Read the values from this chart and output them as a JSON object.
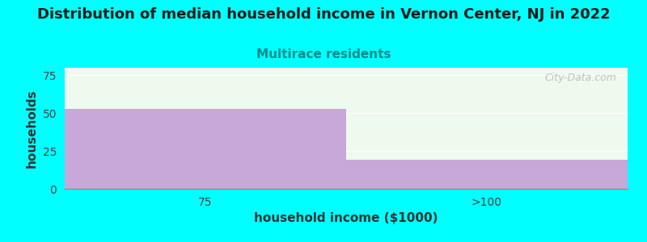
{
  "title": "Distribution of median household income in Vernon Center, NJ in 2022",
  "subtitle": "Multirace residents",
  "subtitle_color": "#008b8b",
  "xlabel": "household income ($1000)",
  "ylabel": "households",
  "categories": [
    "75",
    ">100"
  ],
  "values": [
    53,
    19
  ],
  "bar_color": "#c8a8d8",
  "background_color": "#00ffff",
  "plot_bg_color": "#edfaed",
  "ylim": [
    0,
    80
  ],
  "yticks": [
    0,
    25,
    50,
    75
  ],
  "title_fontsize": 13,
  "subtitle_fontsize": 11,
  "axis_label_fontsize": 11,
  "tick_fontsize": 10,
  "watermark": "City-Data.com"
}
